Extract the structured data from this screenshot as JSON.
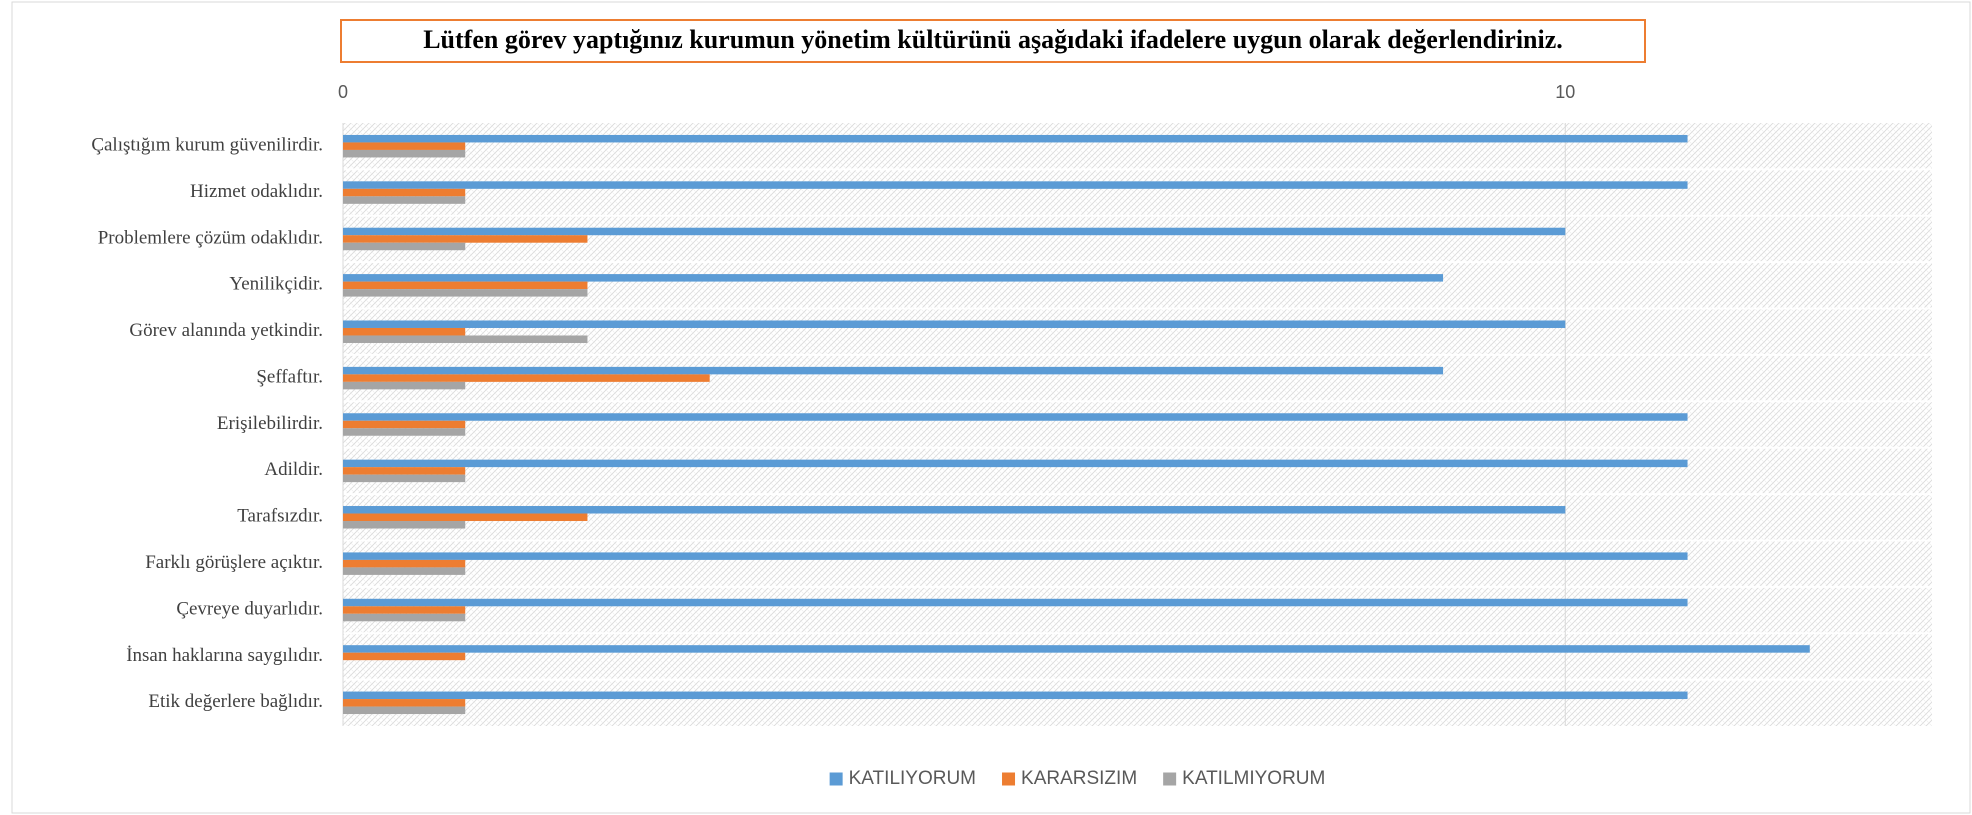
{
  "chart_data": {
    "type": "hbar",
    "title": "Lütfen görev yaptığınız kurumun yönetim kültürünü aşağıdaki ifadelere uygun olarak değerlendiriniz.",
    "categories": [
      "Çalıştığım kurum güvenilirdir.",
      "Hizmet odaklıdır.",
      "Problemlere çözüm odaklıdır.",
      "Yenilikçidir.",
      "Görev alanında yetkindir.",
      "Şeffaftır.",
      "Erişilebilirdir.",
      "Adildir.",
      "Tarafsızdır.",
      "Farklı görüşlere açıktır.",
      "Çevreye duyarlıdır.",
      "İnsan haklarına saygılıdır.",
      "Etik değerlere bağlıdır."
    ],
    "series": [
      {
        "name": "KATILIYORUM",
        "color": "#5b9bd5",
        "values": [
          11,
          11,
          10,
          9,
          10,
          9,
          11,
          11,
          10,
          11,
          11,
          12,
          11
        ]
      },
      {
        "name": "KARARSIZIM",
        "color": "#ed7d31",
        "values": [
          1,
          1,
          2,
          2,
          1,
          3,
          1,
          1,
          2,
          1,
          1,
          1,
          1
        ]
      },
      {
        "name": "KATILMIYORUM",
        "color": "#a5a5a5",
        "values": [
          1,
          1,
          1,
          2,
          2,
          1,
          1,
          1,
          1,
          1,
          1,
          0,
          1
        ]
      }
    ],
    "xlim": [
      0,
      13
    ],
    "xticks": [
      0,
      10
    ],
    "grid": true,
    "legend": "bottom"
  }
}
